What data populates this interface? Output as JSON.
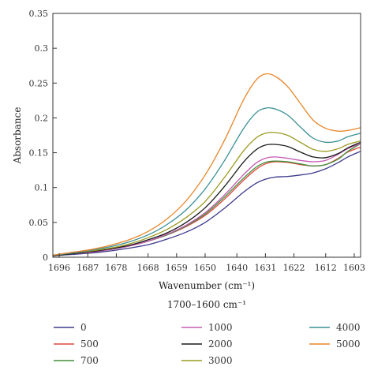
{
  "chart_data": {
    "type": "line",
    "title": "",
    "xlabel": "Wavenumber (cm⁻¹)",
    "ylabel": "Absorbance",
    "subtitle": "1700–1600 cm⁻¹",
    "xlim": [
      1698,
      1601
    ],
    "x_reversed": true,
    "ylim": [
      0,
      0.35
    ],
    "x_ticks": [
      1696,
      1687,
      1678,
      1668,
      1659,
      1650,
      1640,
      1631,
      1622,
      1612,
      1603
    ],
    "x_tick_labels": [
      "1696",
      "1687",
      "1678",
      "1668",
      "1659",
      "1650",
      "1640",
      "1631",
      "1622",
      "1612",
      "1603"
    ],
    "y_ticks": [
      0,
      0.05,
      0.1,
      0.15,
      0.2,
      0.25,
      0.3,
      0.35
    ],
    "y_tick_labels": [
      "0",
      "0.05",
      "0.1",
      "0.15",
      "0.2",
      "0.25",
      "0.3",
      "0.35"
    ],
    "grid": false,
    "legend_position": "bottom",
    "x": [
      1698,
      1692,
      1686,
      1680,
      1674,
      1668,
      1662,
      1656,
      1650,
      1644,
      1638,
      1634,
      1631,
      1628,
      1624,
      1620,
      1616,
      1612,
      1608,
      1605,
      1601
    ],
    "series": [
      {
        "name": "0",
        "color": "#3c3a8c",
        "values": [
          0.002,
          0.004,
          0.006,
          0.009,
          0.013,
          0.018,
          0.026,
          0.036,
          0.05,
          0.07,
          0.093,
          0.106,
          0.112,
          0.115,
          0.116,
          0.118,
          0.121,
          0.127,
          0.136,
          0.144,
          0.152
        ]
      },
      {
        "name": "500",
        "color": "#e0473e",
        "values": [
          0.002,
          0.005,
          0.007,
          0.011,
          0.016,
          0.023,
          0.032,
          0.044,
          0.06,
          0.083,
          0.11,
          0.126,
          0.134,
          0.137,
          0.136,
          0.133,
          0.131,
          0.133,
          0.142,
          0.151,
          0.158
        ]
      },
      {
        "name": "700",
        "color": "#3f8f3a",
        "values": [
          0.002,
          0.005,
          0.007,
          0.011,
          0.016,
          0.023,
          0.032,
          0.045,
          0.062,
          0.086,
          0.113,
          0.129,
          0.136,
          0.138,
          0.137,
          0.134,
          0.131,
          0.133,
          0.141,
          0.152,
          0.163
        ]
      },
      {
        "name": "1000",
        "color": "#c45ab3",
        "values": [
          0.002,
          0.005,
          0.007,
          0.011,
          0.016,
          0.023,
          0.033,
          0.046,
          0.064,
          0.089,
          0.118,
          0.135,
          0.142,
          0.144,
          0.142,
          0.139,
          0.137,
          0.139,
          0.148,
          0.156,
          0.163
        ]
      },
      {
        "name": "2000",
        "color": "#1a1a1a",
        "values": [
          0.002,
          0.005,
          0.008,
          0.012,
          0.017,
          0.025,
          0.035,
          0.05,
          0.071,
          0.101,
          0.136,
          0.154,
          0.161,
          0.162,
          0.159,
          0.151,
          0.144,
          0.143,
          0.149,
          0.157,
          0.165
        ]
      },
      {
        "name": "3000",
        "color": "#9a9a22",
        "values": [
          0.003,
          0.006,
          0.009,
          0.013,
          0.019,
          0.028,
          0.04,
          0.057,
          0.08,
          0.114,
          0.152,
          0.171,
          0.178,
          0.179,
          0.175,
          0.165,
          0.155,
          0.152,
          0.156,
          0.162,
          0.167
        ]
      },
      {
        "name": "4000",
        "color": "#3a8f94",
        "values": [
          0.003,
          0.006,
          0.01,
          0.015,
          0.022,
          0.032,
          0.047,
          0.068,
          0.098,
          0.138,
          0.184,
          0.207,
          0.214,
          0.213,
          0.204,
          0.187,
          0.171,
          0.165,
          0.167,
          0.173,
          0.178
        ]
      },
      {
        "name": "5000",
        "color": "#e8862a",
        "values": [
          0.003,
          0.007,
          0.011,
          0.017,
          0.025,
          0.037,
          0.055,
          0.081,
          0.118,
          0.167,
          0.225,
          0.254,
          0.263,
          0.26,
          0.245,
          0.221,
          0.197,
          0.185,
          0.181,
          0.182,
          0.186
        ]
      }
    ]
  }
}
